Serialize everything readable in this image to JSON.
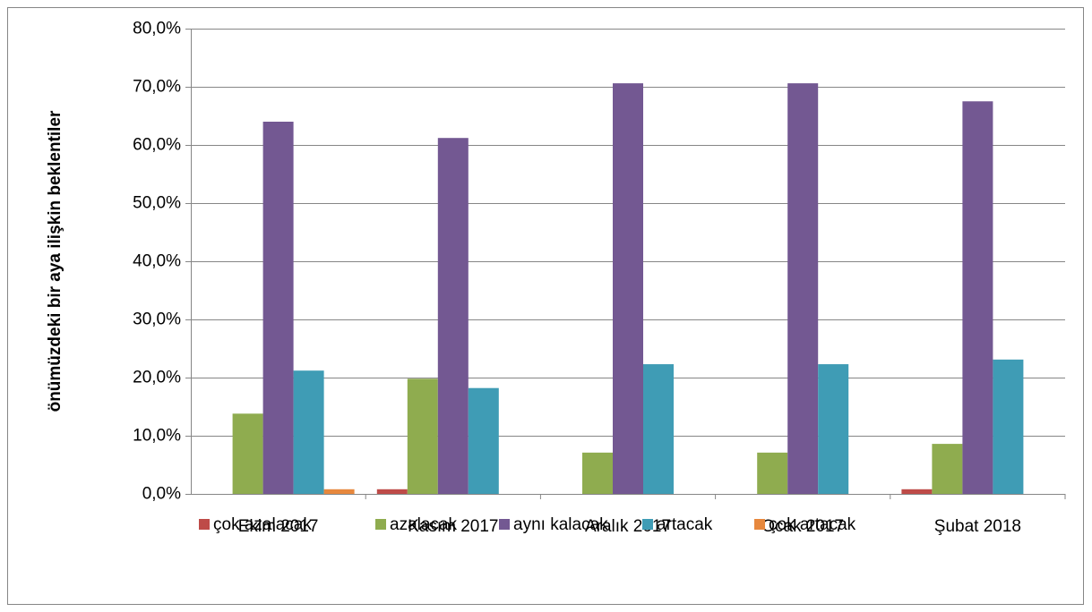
{
  "chart_data": {
    "type": "bar",
    "y_label": "önümüzdeki bir aya ilişkin beklentiler",
    "categories": [
      "Ekim 2017",
      "Kasım 2017",
      "Aralık 2017",
      "Ocak 2017",
      "Şubat 2018"
    ],
    "series": [
      {
        "name": "çok azalacak",
        "color": "#be4b48",
        "values": [
          0,
          0.8,
          0,
          0,
          0.8
        ]
      },
      {
        "name": "azalacak",
        "color": "#8fac4f",
        "values": [
          13.8,
          19.8,
          7.1,
          7.1,
          8.6
        ]
      },
      {
        "name": "aynı kalacak",
        "color": "#735892",
        "values": [
          64.0,
          61.2,
          70.6,
          70.6,
          67.5
        ]
      },
      {
        "name": "artacak",
        "color": "#3f9cb5",
        "values": [
          21.2,
          18.2,
          22.3,
          22.3,
          23.1
        ]
      },
      {
        "name": "çok artacak",
        "color": "#e7883d",
        "values": [
          0.8,
          0,
          0,
          0,
          0
        ]
      }
    ],
    "ylim": [
      0,
      80
    ],
    "yticks": [
      {
        "value": 0,
        "label": "0,0%"
      },
      {
        "value": 10,
        "label": "10,0%"
      },
      {
        "value": 20,
        "label": "20,0%"
      },
      {
        "value": 30,
        "label": "30,0%"
      },
      {
        "value": 40,
        "label": "40,0%"
      },
      {
        "value": 50,
        "label": "50,0%"
      },
      {
        "value": 60,
        "label": "60,0%"
      },
      {
        "value": 70,
        "label": "70,0%"
      },
      {
        "value": 80,
        "label": "80,0%"
      }
    ],
    "grid": true,
    "legend": "bottom"
  }
}
